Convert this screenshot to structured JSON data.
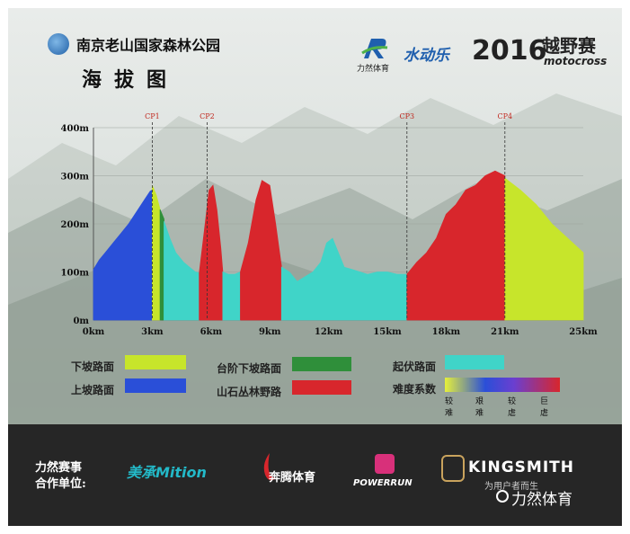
{
  "header": {
    "park_name": "南京老山国家森林公园",
    "map_title": "海拔图",
    "sponsor_liran_text": "力然体育",
    "sponsor_shuidongle": "水动乐",
    "event_year": "2016",
    "event_name": "越野赛",
    "event_name_en": "motocross"
  },
  "chart_data": {
    "type": "area",
    "x_unit": "km",
    "x_ticks": [
      "0km",
      "3km",
      "6km",
      "9km",
      "12km",
      "15km",
      "18km",
      "21km",
      "25km"
    ],
    "x_tick_values": [
      0,
      3,
      6,
      9,
      12,
      15,
      18,
      21,
      25
    ],
    "y_ticks": [
      "0m",
      "100m",
      "200m",
      "300m",
      "400m"
    ],
    "y_tick_values": [
      0,
      100,
      200,
      300,
      400
    ],
    "ylim": [
      0,
      400
    ],
    "xlim": [
      0,
      25
    ],
    "checkpoints": [
      {
        "label": "CP1",
        "x": 3.0
      },
      {
        "label": "CP2",
        "x": 5.8
      },
      {
        "label": "CP3",
        "x": 16.0
      },
      {
        "label": "CP4",
        "x": 21.0
      }
    ],
    "segments": [
      {
        "terrain": "上坡路面",
        "color": "#2a4fd8",
        "points": [
          [
            0,
            105
          ],
          [
            0.3,
            125
          ],
          [
            0.6,
            140
          ],
          [
            1.0,
            160
          ],
          [
            1.4,
            180
          ],
          [
            1.8,
            200
          ],
          [
            2.2,
            225
          ],
          [
            2.6,
            250
          ],
          [
            2.9,
            268
          ],
          [
            3.0,
            270
          ]
        ]
      },
      {
        "terrain": "下坡路面",
        "color": "#c7e52b",
        "points": [
          [
            3.0,
            280
          ],
          [
            3.2,
            260
          ],
          [
            3.4,
            230
          ]
        ]
      },
      {
        "terrain": "台阶下坡路面",
        "color": "#2f8f3a",
        "points": [
          [
            3.4,
            230
          ],
          [
            3.5,
            220
          ],
          [
            3.6,
            210
          ]
        ]
      },
      {
        "terrain": "起伏路面",
        "color": "#40d4c8",
        "points": [
          [
            3.6,
            205
          ],
          [
            3.9,
            170
          ],
          [
            4.2,
            140
          ],
          [
            4.6,
            120
          ],
          [
            4.9,
            110
          ],
          [
            5.2,
            100
          ],
          [
            5.4,
            98
          ]
        ]
      },
      {
        "terrain": "山石丛林野路",
        "color": "#d8262c",
        "points": [
          [
            5.4,
            98
          ],
          [
            5.7,
            200
          ],
          [
            5.9,
            270
          ],
          [
            6.1,
            280
          ],
          [
            6.3,
            230
          ],
          [
            6.5,
            150
          ],
          [
            6.6,
            100
          ]
        ]
      },
      {
        "terrain": "起伏路面",
        "color": "#40d4c8",
        "points": [
          [
            6.6,
            100
          ],
          [
            6.9,
            95
          ],
          [
            7.2,
            95
          ],
          [
            7.5,
            100
          ]
        ]
      },
      {
        "terrain": "山石丛林野路",
        "color": "#d8262c",
        "points": [
          [
            7.5,
            100
          ],
          [
            7.9,
            160
          ],
          [
            8.3,
            250
          ],
          [
            8.6,
            290
          ],
          [
            9.0,
            280
          ],
          [
            9.3,
            200
          ],
          [
            9.6,
            110
          ]
        ]
      },
      {
        "terrain": "起伏路面",
        "color": "#40d4c8",
        "points": [
          [
            9.6,
            110
          ],
          [
            10.0,
            100
          ],
          [
            10.4,
            80
          ],
          [
            10.8,
            90
          ],
          [
            11.2,
            100
          ],
          [
            11.6,
            120
          ],
          [
            11.9,
            160
          ],
          [
            12.2,
            170
          ],
          [
            12.5,
            140
          ],
          [
            12.8,
            110
          ],
          [
            13.2,
            105
          ],
          [
            13.6,
            100
          ],
          [
            14.0,
            95
          ],
          [
            14.5,
            100
          ],
          [
            15.0,
            100
          ],
          [
            15.5,
            95
          ],
          [
            16.0,
            95
          ]
        ]
      },
      {
        "terrain": "山石丛林野路",
        "color": "#d8262c",
        "points": [
          [
            16.0,
            95
          ],
          [
            16.5,
            120
          ],
          [
            17.0,
            140
          ],
          [
            17.5,
            170
          ],
          [
            18.0,
            220
          ],
          [
            18.5,
            240
          ],
          [
            19.0,
            270
          ],
          [
            19.5,
            280
          ],
          [
            20.0,
            300
          ],
          [
            20.5,
            310
          ],
          [
            21.0,
            300
          ]
        ]
      },
      {
        "terrain": "下坡路面",
        "color": "#c7e52b",
        "points": [
          [
            21.0,
            295
          ],
          [
            21.8,
            270
          ],
          [
            22.6,
            240
          ],
          [
            23.4,
            200
          ],
          [
            24.2,
            170
          ],
          [
            25.0,
            140
          ]
        ]
      }
    ]
  },
  "legend": {
    "items": [
      {
        "label": "下坡路面",
        "color": "#c7e52b"
      },
      {
        "label": "上坡路面",
        "color": "#2a4fd8"
      },
      {
        "label": "台阶下坡路面",
        "color": "#2f8f3a"
      },
      {
        "label": "山石丛林野路",
        "color": "#d8262c"
      },
      {
        "label": "起伏路面",
        "color": "#40d4c8"
      }
    ],
    "difficulty_label": "难度系数",
    "difficulty_scale": [
      "较难",
      "艰难",
      "较虐",
      "巨虐"
    ]
  },
  "footer": {
    "partners_title_1": "力然赛事",
    "partners_title_2": "合作单位:",
    "partner_1": "美承Mition",
    "partner_2": "奔腾体育",
    "partner_3": "POWERRUN",
    "partner_4": "KINGSMITH",
    "partner_4_sub": "为用户者而生",
    "watermark": "力然体育"
  }
}
